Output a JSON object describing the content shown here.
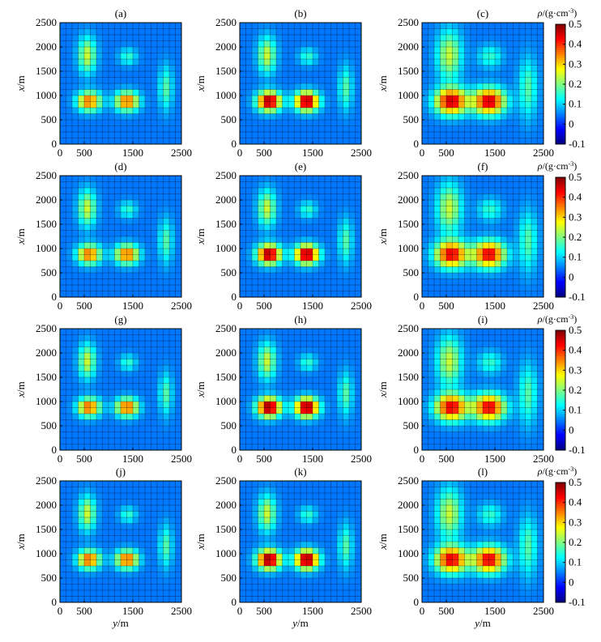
{
  "figure": {
    "axis": {
      "xlabel": "y/m",
      "ylabel": "x/m",
      "xlim": [
        0,
        2500
      ],
      "ylim": [
        0,
        2500
      ],
      "xticks": [
        0,
        500,
        1500,
        2500
      ],
      "yticks": [
        0,
        500,
        1000,
        1500,
        2000,
        2500
      ],
      "grid": true
    },
    "colorbar": {
      "label": "ρ/(g·cm⁻³)",
      "range": [
        -0.1,
        0.5
      ],
      "ticks": [
        "0.5",
        "0.4",
        "0.3",
        "0.2",
        "0.1",
        "0",
        "-0.1"
      ],
      "colormap": "jet"
    }
  },
  "chart_data": [
    {
      "type": "heatmap",
      "title": "(a)",
      "peak": 0.33,
      "blob_scale": 1.0
    },
    {
      "type": "heatmap",
      "title": "(b)",
      "peak": 0.46,
      "blob_scale": 1.0
    },
    {
      "type": "heatmap",
      "title": "(c)",
      "peak": 0.42,
      "blob_scale": 1.35
    },
    {
      "type": "heatmap",
      "title": "(d)",
      "peak": 0.33,
      "blob_scale": 1.0
    },
    {
      "type": "heatmap",
      "title": "(e)",
      "peak": 0.46,
      "blob_scale": 1.0
    },
    {
      "type": "heatmap",
      "title": "(f)",
      "peak": 0.4,
      "blob_scale": 1.35
    },
    {
      "type": "heatmap",
      "title": "(g)",
      "peak": 0.34,
      "blob_scale": 0.95
    },
    {
      "type": "heatmap",
      "title": "(h)",
      "peak": 0.47,
      "blob_scale": 1.0
    },
    {
      "type": "heatmap",
      "title": "(i)",
      "peak": 0.4,
      "blob_scale": 1.35
    },
    {
      "type": "heatmap",
      "title": "(j)",
      "peak": 0.34,
      "blob_scale": 0.95
    },
    {
      "type": "heatmap",
      "title": "(k)",
      "peak": 0.47,
      "blob_scale": 1.0
    },
    {
      "type": "heatmap",
      "title": "(l)",
      "peak": 0.4,
      "blob_scale": 1.35
    }
  ]
}
